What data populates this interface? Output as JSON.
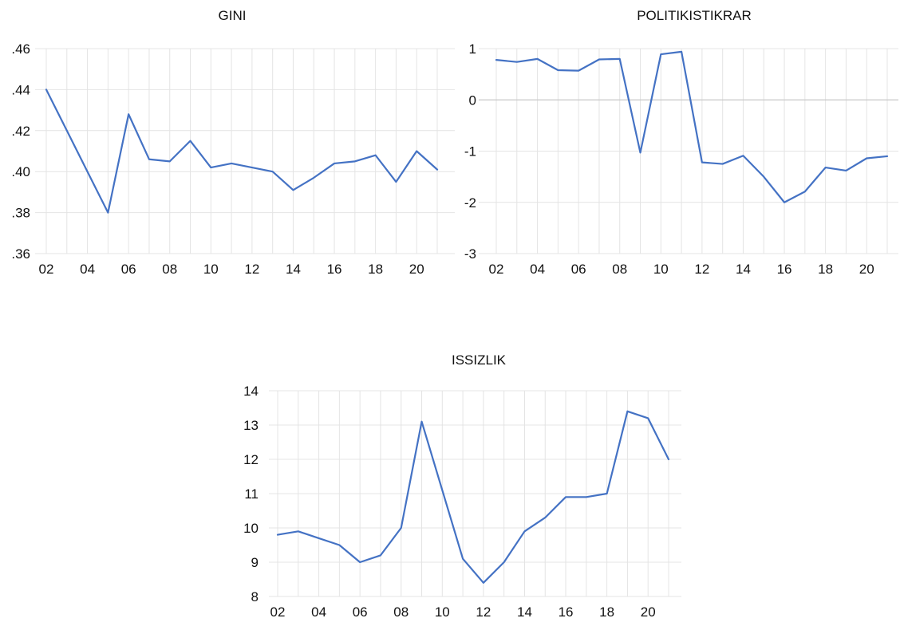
{
  "chart_data": [
    {
      "type": "line",
      "title": "GINI",
      "x": [
        2002,
        2003,
        2004,
        2005,
        2006,
        2007,
        2008,
        2009,
        2010,
        2011,
        2012,
        2013,
        2014,
        2015,
        2016,
        2017,
        2018,
        2019,
        2020,
        2021
      ],
      "series": [
        {
          "values": [
            0.44,
            0.42,
            0.4,
            0.38,
            0.428,
            0.406,
            0.405,
            0.415,
            0.402,
            0.404,
            0.402,
            0.4,
            0.391,
            0.397,
            0.404,
            0.405,
            0.408,
            0.395,
            0.41,
            0.401
          ]
        }
      ],
      "yticks": [
        0.36,
        0.38,
        0.4,
        0.42,
        0.44,
        0.46
      ],
      "ytick_labels": [
        ".36",
        ".38",
        ".40",
        ".42",
        ".44",
        ".46"
      ],
      "ylim": [
        0.36,
        0.46
      ],
      "xticks": [
        2002,
        2004,
        2006,
        2008,
        2010,
        2012,
        2014,
        2016,
        2018,
        2020
      ],
      "xtick_labels": [
        "02",
        "04",
        "06",
        "08",
        "10",
        "12",
        "14",
        "16",
        "18",
        "20"
      ],
      "xlim": [
        2002,
        2021
      ],
      "grid": true,
      "legend": "none"
    },
    {
      "type": "line",
      "title": "POLITIKISTIKRAR",
      "x": [
        2002,
        2003,
        2004,
        2005,
        2006,
        2007,
        2008,
        2009,
        2010,
        2011,
        2012,
        2013,
        2014,
        2015,
        2016,
        2017,
        2018,
        2019,
        2020,
        2021
      ],
      "series": [
        {
          "values": [
            0.78,
            0.74,
            0.8,
            0.58,
            0.57,
            0.79,
            0.8,
            -1.03,
            0.89,
            0.94,
            -1.22,
            -1.25,
            -1.09,
            -1.5,
            -2.0,
            -1.79,
            -1.32,
            -1.38,
            -1.14,
            -1.1
          ]
        }
      ],
      "yticks": [
        -3,
        -2,
        -1,
        0,
        1
      ],
      "ytick_labels": [
        "-3",
        "-2",
        "-1",
        "0",
        "1"
      ],
      "ylim": [
        -3,
        1
      ],
      "xticks": [
        2002,
        2004,
        2006,
        2008,
        2010,
        2012,
        2014,
        2016,
        2018,
        2020
      ],
      "xtick_labels": [
        "02",
        "04",
        "06",
        "08",
        "10",
        "12",
        "14",
        "16",
        "18",
        "20"
      ],
      "xlim": [
        2002,
        2021
      ],
      "zero_line": true,
      "grid": true,
      "legend": "none"
    },
    {
      "type": "line",
      "title": "ISSIZLIK",
      "x": [
        2002,
        2003,
        2004,
        2005,
        2006,
        2007,
        2008,
        2009,
        2010,
        2011,
        2012,
        2013,
        2014,
        2015,
        2016,
        2017,
        2018,
        2019,
        2020,
        2021
      ],
      "series": [
        {
          "values": [
            9.8,
            9.9,
            9.7,
            9.5,
            9.0,
            9.2,
            10.0,
            13.1,
            11.1,
            9.1,
            8.4,
            9.0,
            9.9,
            10.3,
            10.9,
            10.9,
            11.0,
            13.4,
            13.2,
            12.0
          ]
        }
      ],
      "yticks": [
        8,
        9,
        10,
        11,
        12,
        13,
        14
      ],
      "ytick_labels": [
        "8",
        "9",
        "10",
        "11",
        "12",
        "13",
        "14"
      ],
      "ylim": [
        8,
        14
      ],
      "xticks": [
        2002,
        2004,
        2006,
        2008,
        2010,
        2012,
        2014,
        2016,
        2018,
        2020
      ],
      "xtick_labels": [
        "02",
        "04",
        "06",
        "08",
        "10",
        "12",
        "14",
        "16",
        "18",
        "20"
      ],
      "xlim": [
        2002,
        2021
      ],
      "grid": true,
      "legend": "none"
    }
  ],
  "colors": {
    "series": "#4472C4"
  }
}
